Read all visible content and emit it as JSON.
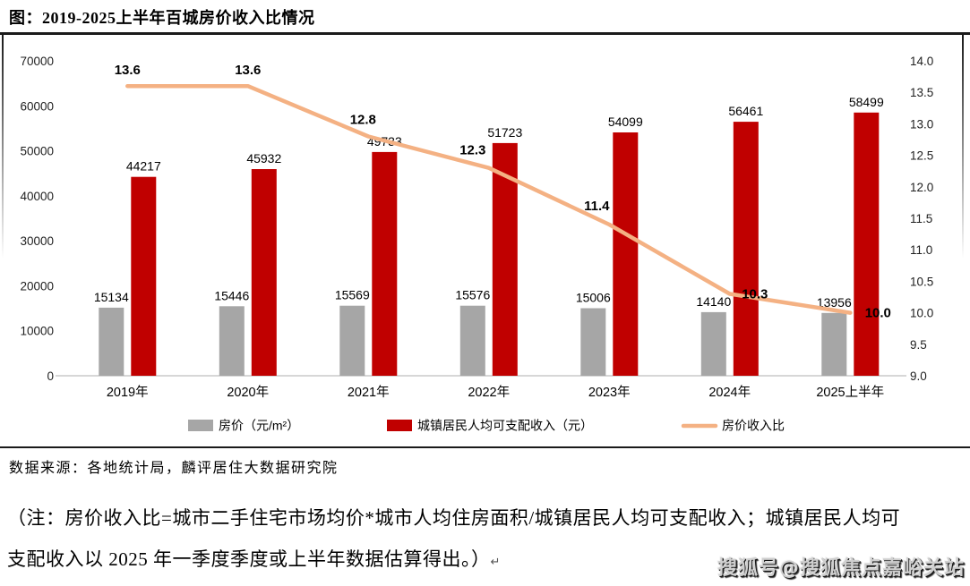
{
  "title": "图：2019-2025上半年百城房价收入比情况",
  "source": "数据来源：各地统计局，麟评居住大数据研究院",
  "note": {
    "line1": "（注：房价收入比=城市二手住宅市场均价*城市人均住房面积/城镇居民人均可支配收入；城镇居民人均可",
    "line2": "支配收入以 2025 年一季度季度或上半年数据估算得出。）",
    "mark": "↵"
  },
  "watermark": "搜狐号@搜狐焦点嘉峪关站",
  "colors": {
    "price_bar": "#A6A6A6",
    "income_bar": "#C00000",
    "ratio_line": "#F4B183",
    "rule": "#1a1a1a",
    "baseline": "#bfbfbf"
  },
  "chart_data": {
    "type": "bar",
    "subtype": "grouped-bars-with-line",
    "title": "图：2019-2025上半年百城房价收入比情况",
    "categories": [
      "2019年",
      "2020年",
      "2021年",
      "2022年",
      "2023年",
      "2024年",
      "2025上半年"
    ],
    "bar_series": [
      {
        "name": "房价（元/m²）",
        "color": "#A6A6A6",
        "axis": "left",
        "values": [
          15134,
          15446,
          15569,
          15576,
          15006,
          14140,
          13956
        ]
      },
      {
        "name": "城镇居民人均可支配收入（元）",
        "color": "#C00000",
        "axis": "left",
        "values": [
          44217,
          45932,
          49733,
          51723,
          54099,
          56461,
          58499
        ]
      }
    ],
    "line_series": [
      {
        "name": "房价收入比",
        "color": "#F4B183",
        "axis": "right",
        "values": [
          13.6,
          13.6,
          12.8,
          12.3,
          11.4,
          10.3,
          10.0
        ],
        "labels": [
          "13.6",
          "13.6",
          "12.8",
          "12.3",
          "11.4",
          "10.3",
          "10.0"
        ]
      }
    ],
    "left_axis": {
      "min": 0,
      "max": 70000,
      "step": 10000,
      "ticks": [
        "0",
        "10000",
        "20000",
        "30000",
        "40000",
        "50000",
        "60000",
        "70000"
      ]
    },
    "right_axis": {
      "min": 9.0,
      "max": 14.0,
      "step": 0.5,
      "ticks": [
        "9.0",
        "9.5",
        "10.0",
        "10.5",
        "11.0",
        "11.5",
        "12.0",
        "12.5",
        "13.0",
        "13.5",
        "14.0"
      ]
    },
    "legend_position": "bottom",
    "grid": false
  }
}
